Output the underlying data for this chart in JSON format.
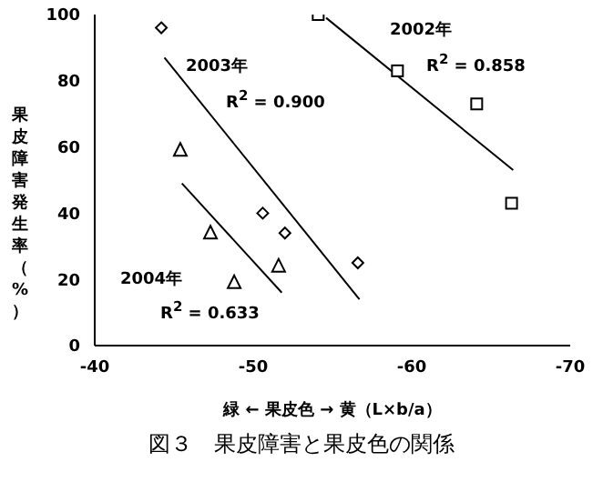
{
  "chart_data": {
    "type": "scatter",
    "xlabel": "緑 ← 果皮色 → 黄（L×b/a）",
    "ylabel": "果皮障害発生率（%）",
    "xlim": [
      -40,
      -70
    ],
    "xticks": [
      -40,
      -50,
      -60,
      -70
    ],
    "ylim": [
      0,
      100
    ],
    "yticks": [
      0,
      20,
      40,
      60,
      80,
      100
    ],
    "grid": false,
    "series": [
      {
        "marker": "square",
        "color": "#000000",
        "x": [
          -54.1,
          -59.1,
          -64.1,
          -66.3
        ],
        "values": [
          100,
          83,
          73,
          43
        ]
      },
      {
        "marker": "diamond",
        "color": "#000000",
        "x": [
          -44.2,
          -50.6,
          -52.0,
          -56.6
        ],
        "values": [
          96,
          40,
          34,
          25
        ]
      },
      {
        "marker": "triangle",
        "color": "#000000",
        "x": [
          -45.4,
          -47.3,
          -48.8,
          -51.6
        ],
        "values": [
          59,
          34,
          19,
          24
        ]
      },
      {
        "type": "line",
        "marker": "none",
        "color": "#000000",
        "x": [
          -54.6,
          -66.4
        ],
        "values": [
          99,
          53
        ]
      },
      {
        "type": "line",
        "marker": "none",
        "color": "#000000",
        "x": [
          -44.4,
          -56.7
        ],
        "values": [
          87,
          14
        ]
      },
      {
        "type": "line",
        "marker": "none",
        "color": "#000000",
        "x": [
          -45.5,
          -51.8
        ],
        "values": [
          49,
          16
        ]
      }
    ],
    "annotations": [
      "2002年",
      "R$^{2}$ = 0.858",
      "2003年",
      "R$^{2}$ = 0.900",
      "2004年",
      "R$^{2}$ = 0.633",
      "図３　果皮障害と果皮色の関係"
    ]
  }
}
